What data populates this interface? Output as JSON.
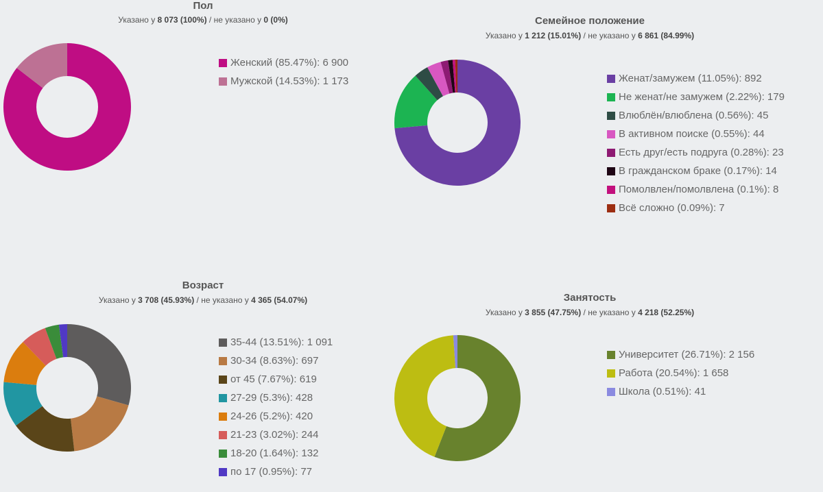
{
  "chart_data": [
    {
      "type": "pie",
      "id": "gender",
      "title": "Пол",
      "subtitle": {
        "p1": "Указано у ",
        "b1": "8 073 (100%)",
        "p2": " / не указано у ",
        "b2": "0 (0%)"
      },
      "slices": [
        {
          "label": "Женский (85.47%): 6 900",
          "value": 6900,
          "color": "#bf0d83"
        },
        {
          "label": "Мужской (14.53%): 1 173",
          "value": 1173,
          "color": "#bd7194"
        }
      ]
    },
    {
      "type": "pie",
      "id": "marital",
      "title": "Семейное положение",
      "subtitle": {
        "p1": "Указано у ",
        "b1": "1 212 (15.01%)",
        "p2": " / не указано у ",
        "b2": "6 861 (84.99%)"
      },
      "slices": [
        {
          "label": "Женат/замужем (11.05%): 892",
          "value": 892,
          "color": "#6a3fa3"
        },
        {
          "label": "Не женат/не замужем (2.22%): 179",
          "value": 179,
          "color": "#1cb452"
        },
        {
          "label": "Влюблён/влюблена (0.56%): 45",
          "value": 45,
          "color": "#2e4c45"
        },
        {
          "label": "В активном поиске (0.55%): 44",
          "value": 44,
          "color": "#d857c1"
        },
        {
          "label": "Есть друг/есть подруга (0.28%): 23",
          "value": 23,
          "color": "#8e1a73"
        },
        {
          "label": "В гражданском браке (0.17%): 14",
          "value": 14,
          "color": "#1e0514"
        },
        {
          "label": "Помолвлен/помолвлена (0.1%): 8",
          "value": 8,
          "color": "#c2107d"
        },
        {
          "label": "Всё сложно (0.09%): 7",
          "value": 7,
          "color": "#9c2e12"
        }
      ]
    },
    {
      "type": "pie",
      "id": "age",
      "title": "Возраст",
      "subtitle": {
        "p1": "Указано у ",
        "b1": "3 708 (45.93%)",
        "p2": " / не указано у ",
        "b2": "4 365 (54.07%)"
      },
      "slices": [
        {
          "label": "35-44 (13.51%): 1 091",
          "value": 1091,
          "color": "#5e5c5c"
        },
        {
          "label": "30-34 (8.63%): 697",
          "value": 697,
          "color": "#b87a44"
        },
        {
          "label": "от 45 (7.67%): 619",
          "value": 619,
          "color": "#5a4519"
        },
        {
          "label": "27-29 (5.3%): 428",
          "value": 428,
          "color": "#2196a2"
        },
        {
          "label": "24-26 (5.2%): 420",
          "value": 420,
          "color": "#db7d0e"
        },
        {
          "label": "21-23 (3.02%): 244",
          "value": 244,
          "color": "#d65c5a"
        },
        {
          "label": "18-20 (1.64%): 132",
          "value": 132,
          "color": "#3a8c3a"
        },
        {
          "label": "по 17 (0.95%): 77",
          "value": 77,
          "color": "#5039c4"
        }
      ]
    },
    {
      "type": "pie",
      "id": "employment",
      "title": "Занятость",
      "subtitle": {
        "p1": "Указано у ",
        "b1": "3 855 (47.75%)",
        "p2": " / не указано у ",
        "b2": "4 218 (52.25%)"
      },
      "slices": [
        {
          "label": "Университет (26.71%): 2 156",
          "value": 2156,
          "color": "#68822d"
        },
        {
          "label": "Работа (20.54%): 1 658",
          "value": 1658,
          "color": "#bdbd12"
        },
        {
          "label": "Школа (0.51%): 41",
          "value": 41,
          "color": "#8a8ae0"
        }
      ]
    }
  ]
}
